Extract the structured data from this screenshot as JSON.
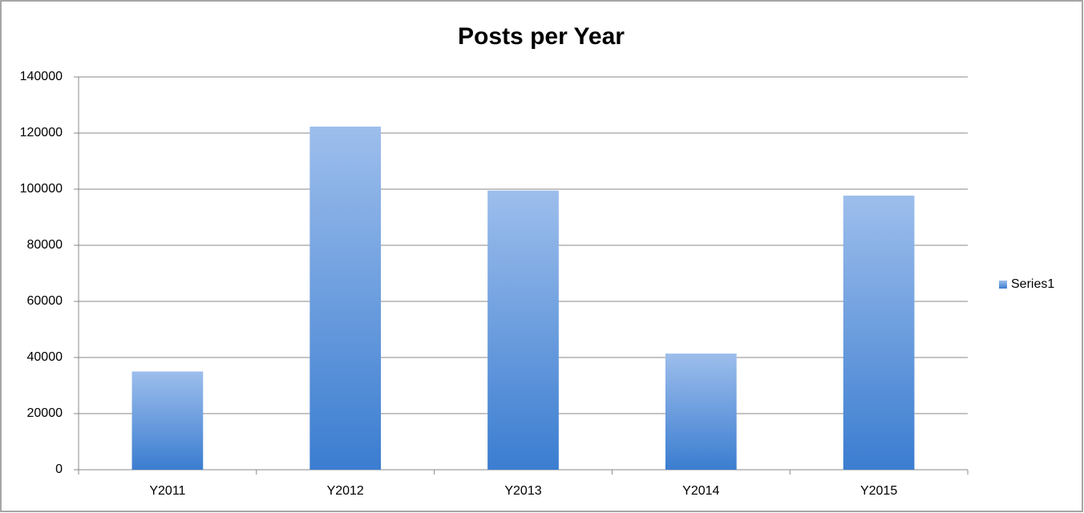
{
  "chart_data": {
    "type": "bar",
    "title": "Posts per Year",
    "categories": [
      "Y2011",
      "Y2012",
      "Y2013",
      "Y2014",
      "Y2015"
    ],
    "series": [
      {
        "name": "Series1",
        "color": "#3b7dd0",
        "values": [
          35000,
          122300,
          99500,
          41400,
          97700
        ]
      }
    ],
    "ylim": [
      0,
      140000
    ],
    "yticks": [
      0,
      20000,
      40000,
      60000,
      80000,
      100000,
      120000,
      140000
    ],
    "grid": true,
    "legend": "right"
  }
}
